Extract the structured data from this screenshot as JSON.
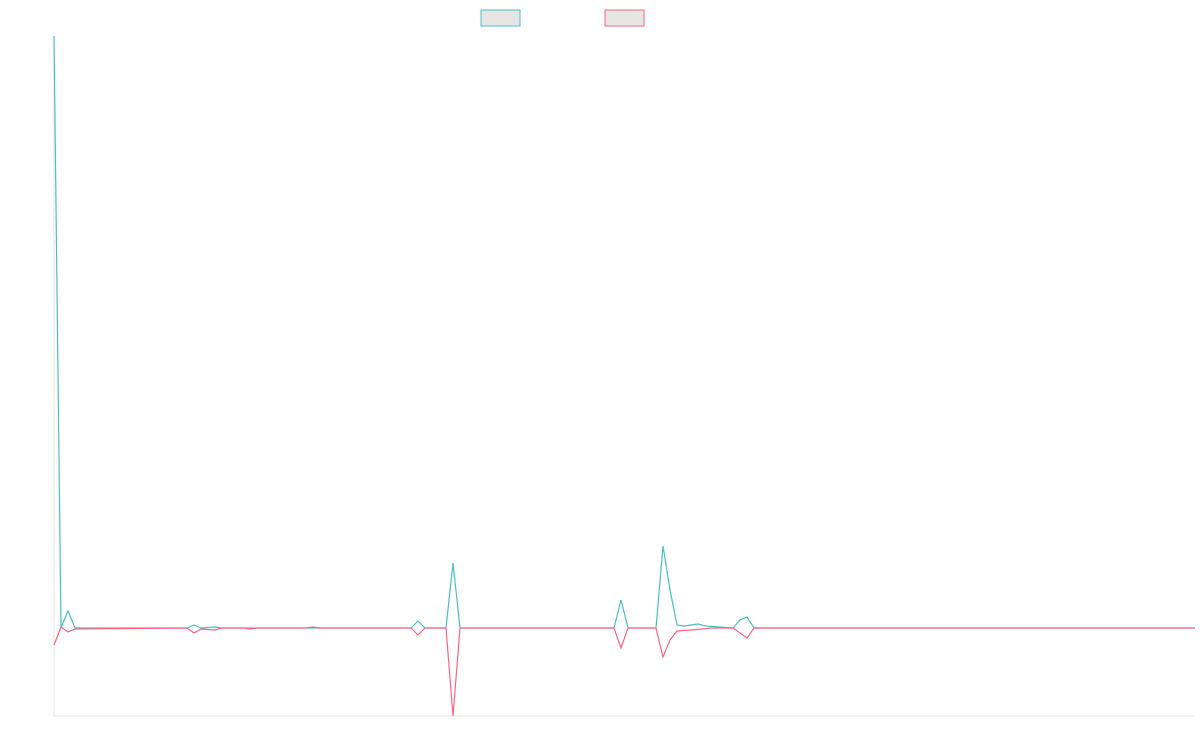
{
  "chart_data": {
    "type": "line",
    "xlim": [
      0,
      163
    ],
    "ylim": [
      -0.88,
      5.92
    ],
    "series": [
      {
        "color": "#4bc0c0",
        "x": [
          0,
          1,
          2,
          3,
          19,
          20,
          21,
          23,
          24,
          51,
          52,
          53,
          56,
          57,
          58,
          80,
          81,
          82,
          86,
          87,
          88,
          89,
          90,
          92,
          93,
          97,
          98,
          99,
          100,
          163
        ],
        "values": [
          5.92,
          0,
          0.17,
          0,
          0,
          0.03,
          0,
          0.01,
          0,
          0,
          0.07,
          0,
          0,
          0.65,
          0,
          0,
          0.28,
          0,
          0,
          0.82,
          0.38,
          0.03,
          0.02,
          0.04,
          0.02,
          0,
          0.08,
          0.11,
          0,
          0
        ]
      },
      {
        "color": "#ff6384",
        "x": [
          0,
          1,
          2,
          3,
          19,
          20,
          21,
          23,
          24,
          27,
          28,
          29,
          36,
          37,
          38,
          51,
          52,
          53,
          56,
          57,
          58,
          80,
          81,
          82,
          86,
          87,
          88,
          89,
          91,
          94,
          97,
          99,
          100,
          163
        ],
        "values": [
          -0.17,
          0.01,
          -0.04,
          -0.01,
          0,
          -0.05,
          -0.01,
          -0.02,
          0,
          0,
          -0.01,
          0,
          0,
          0.01,
          0,
          0,
          -0.07,
          0,
          0,
          -0.88,
          0,
          0,
          -0.2,
          0,
          0,
          -0.29,
          -0.12,
          -0.03,
          -0.02,
          0,
          0,
          -0.1,
          0,
          0
        ]
      }
    ]
  }
}
